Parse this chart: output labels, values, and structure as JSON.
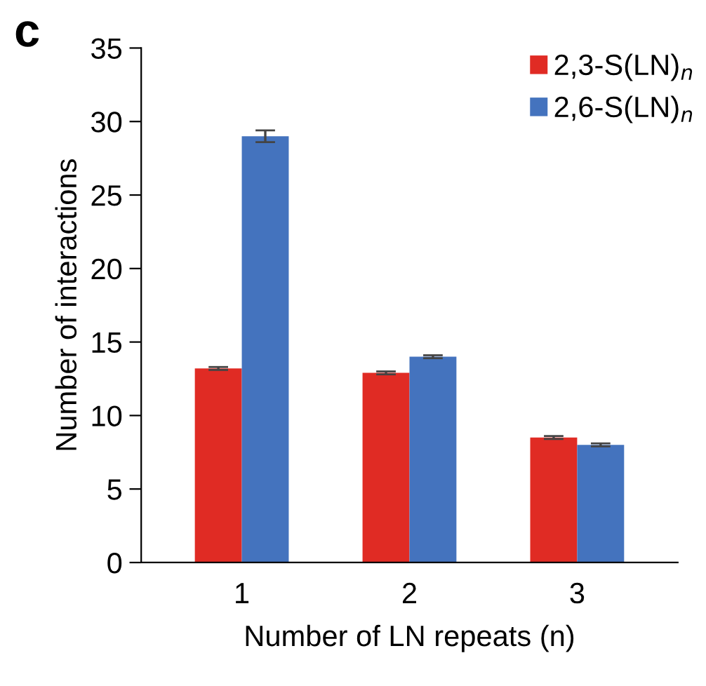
{
  "chart_data": {
    "type": "bar",
    "title": "c",
    "xlabel": "Number of LN repeats (n)",
    "ylabel": "Number of interactions",
    "categories": [
      "1",
      "2",
      "3"
    ],
    "series": [
      {
        "name": "2,3-S(LN)$_{n}$",
        "color": "#e02b24",
        "values": [
          13.2,
          12.9,
          8.5
        ],
        "errors": [
          0.1,
          0.1,
          0.1
        ]
      },
      {
        "name": "2,6-S(LN)$_{n}$",
        "color": "#4473be",
        "values": [
          29.0,
          14.0,
          8.0
        ],
        "errors": [
          0.4,
          0.1,
          0.1
        ]
      }
    ],
    "ylim": [
      0,
      35
    ],
    "yticks": [
      0,
      5,
      10,
      15,
      20,
      25,
      30,
      35
    ],
    "grid": false,
    "legend": "top right"
  }
}
